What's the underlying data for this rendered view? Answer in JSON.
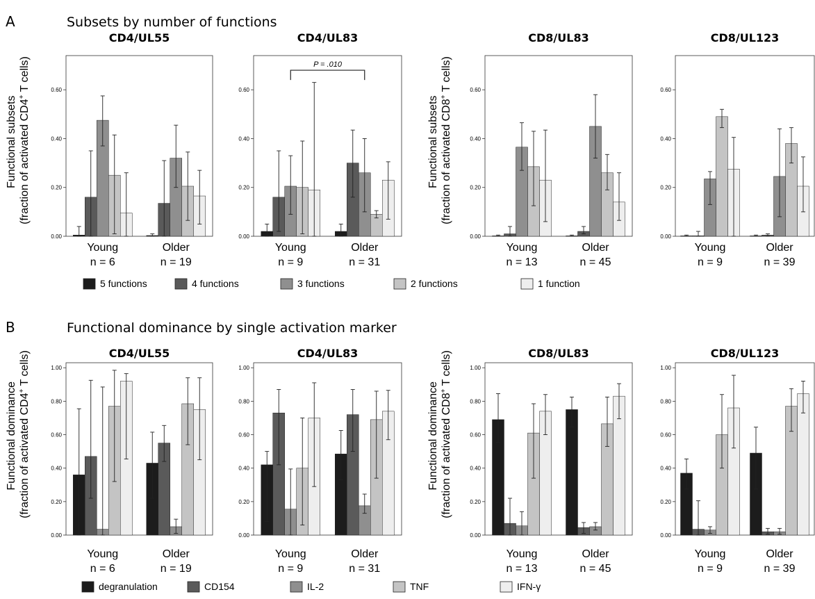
{
  "figure": {
    "panels": [
      {
        "letter": "A",
        "section_title": "Subsets by number of functions",
        "legend": [
          "5 functions",
          "4 functions",
          "3 functions",
          "2 functions",
          "1 function"
        ],
        "ylabels": {
          "cd4": [
            "Functional subsets",
            "(fraction of activated CD4",
            "+",
            " T cells)"
          ],
          "cd8": [
            "Functional subsets",
            "(fraction of activated CD8",
            "+",
            " T cells)"
          ]
        }
      },
      {
        "letter": "B",
        "section_title": "Functional dominance by single activation marker",
        "legend": [
          "degranulation",
          "CD154",
          "IL-2",
          "TNF",
          "IFN-γ"
        ],
        "ylabels": {
          "cd4": [
            "Functional dominance",
            "(fraction of activated CD4",
            "+",
            " T cells)"
          ],
          "cd8": [
            "Functional dominance",
            "(fraction of activated CD8",
            "+",
            " T cells)"
          ]
        }
      }
    ],
    "colors": [
      "#1c1c1c",
      "#5a5a5a",
      "#8f8f8f",
      "#c4c4c4",
      "#eeeeee"
    ]
  },
  "chart_data": [
    {
      "type": "bar",
      "panel": "A",
      "title": "CD4/UL55",
      "ylim": [
        0,
        0.74
      ],
      "yticks": [
        0,
        0.2,
        0.4,
        0.6
      ],
      "yticklabels": [
        "0.00",
        "0.20",
        "0.40",
        "0.60"
      ],
      "groups": [
        {
          "label": "Young",
          "n": "n = 6"
        },
        {
          "label": "Older",
          "n": "n = 19"
        }
      ],
      "series": [
        {
          "name": "5 functions",
          "values": [
            0.005,
            0.003
          ],
          "err_low": [
            0.0,
            0.0
          ],
          "err_high": [
            0.04,
            0.01
          ]
        },
        {
          "name": "4 functions",
          "values": [
            0.16,
            0.135
          ],
          "err_low": [
            0.0,
            0.0
          ],
          "err_high": [
            0.35,
            0.31
          ]
        },
        {
          "name": "3 functions",
          "values": [
            0.475,
            0.32
          ],
          "err_low": [
            0.37,
            0.2
          ],
          "err_high": [
            0.575,
            0.455
          ]
        },
        {
          "name": "2 functions",
          "values": [
            0.25,
            0.205
          ],
          "err_low": [
            0.01,
            0.065
          ],
          "err_high": [
            0.415,
            0.345
          ]
        },
        {
          "name": "1 function",
          "values": [
            0.095,
            0.165
          ],
          "err_low": [
            0.0,
            0.05
          ],
          "err_high": [
            0.26,
            0.27
          ]
        }
      ]
    },
    {
      "type": "bar",
      "panel": "A",
      "title": "CD4/UL83",
      "ylim": [
        0,
        0.74
      ],
      "yticks": [
        0,
        0.2,
        0.4,
        0.6
      ],
      "yticklabels": [
        "0.00",
        "0.20",
        "0.40",
        "0.60"
      ],
      "annotation": {
        "text": "P = .010",
        "from_group": 0,
        "to_group": 1,
        "y": 0.68
      },
      "groups": [
        {
          "label": "Young",
          "n": "n = 9"
        },
        {
          "label": "Older",
          "n": "n = 31"
        }
      ],
      "series": [
        {
          "name": "5 functions",
          "values": [
            0.02,
            0.02
          ],
          "err_low": [
            0.0,
            0.0
          ],
          "err_high": [
            0.05,
            0.05
          ]
        },
        {
          "name": "4 functions",
          "values": [
            0.16,
            0.3
          ],
          "err_low": [
            0.02,
            0.16
          ],
          "err_high": [
            0.35,
            0.435
          ]
        },
        {
          "name": "3 functions",
          "values": [
            0.205,
            0.26
          ],
          "err_low": [
            0.09,
            0.1
          ],
          "err_high": [
            0.33,
            0.4
          ]
        },
        {
          "name": "2 functions",
          "values": [
            0.2,
            0.09
          ],
          "err_low": [
            0.01,
            0.075
          ],
          "err_high": [
            0.39,
            0.105
          ]
        },
        {
          "name": "1 function",
          "values": [
            0.19,
            0.23
          ],
          "err_low": [
            0.0,
            0.07
          ],
          "err_high": [
            0.63,
            0.305
          ]
        }
      ]
    },
    {
      "type": "bar",
      "panel": "A",
      "title": "CD8/UL83",
      "ylim": [
        0,
        0.74
      ],
      "yticks": [
        0,
        0.2,
        0.4,
        0.6
      ],
      "yticklabels": [
        "0.00",
        "0.20",
        "0.40",
        "0.60"
      ],
      "groups": [
        {
          "label": "Young",
          "n": "n = 13"
        },
        {
          "label": "Older",
          "n": "n = 45"
        }
      ],
      "series": [
        {
          "name": "5 functions",
          "values": [
            0.0,
            0.0
          ],
          "err_low": [
            0.0,
            0.0
          ],
          "err_high": [
            0.005,
            0.005
          ]
        },
        {
          "name": "4 functions",
          "values": [
            0.01,
            0.02
          ],
          "err_low": [
            0.0,
            0.01
          ],
          "err_high": [
            0.04,
            0.04
          ]
        },
        {
          "name": "3 functions",
          "values": [
            0.365,
            0.45
          ],
          "err_low": [
            0.27,
            0.32
          ],
          "err_high": [
            0.465,
            0.58
          ]
        },
        {
          "name": "2 functions",
          "values": [
            0.285,
            0.26
          ],
          "err_low": [
            0.125,
            0.19
          ],
          "err_high": [
            0.43,
            0.335
          ]
        },
        {
          "name": "1 function",
          "values": [
            0.23,
            0.14
          ],
          "err_low": [
            0.06,
            0.065
          ],
          "err_high": [
            0.435,
            0.26
          ]
        }
      ]
    },
    {
      "type": "bar",
      "panel": "A",
      "title": "CD8/UL123",
      "ylim": [
        0,
        0.74
      ],
      "yticks": [
        0,
        0.2,
        0.4,
        0.6
      ],
      "yticklabels": [
        "0.00",
        "0.20",
        "0.40",
        "0.60"
      ],
      "groups": [
        {
          "label": "Young",
          "n": "n = 9"
        },
        {
          "label": "Older",
          "n": "n = 39"
        }
      ],
      "series": [
        {
          "name": "5 functions",
          "values": [
            0.0,
            0.0
          ],
          "err_low": [
            0.0,
            0.0
          ],
          "err_high": [
            0.005,
            0.005
          ]
        },
        {
          "name": "4 functions",
          "values": [
            0.002,
            0.005
          ],
          "err_low": [
            0.0,
            0.0
          ],
          "err_high": [
            0.02,
            0.01
          ]
        },
        {
          "name": "3 functions",
          "values": [
            0.235,
            0.245
          ],
          "err_low": [
            0.13,
            0.08
          ],
          "err_high": [
            0.265,
            0.44
          ]
        },
        {
          "name": "2 functions",
          "values": [
            0.49,
            0.38
          ],
          "err_low": [
            0.445,
            0.3
          ],
          "err_high": [
            0.52,
            0.445
          ]
        },
        {
          "name": "1 function",
          "values": [
            0.275,
            0.205
          ],
          "err_low": [
            0.0,
            0.1
          ],
          "err_high": [
            0.405,
            0.325
          ]
        }
      ]
    },
    {
      "type": "bar",
      "panel": "B",
      "title": "CD4/UL55",
      "ylim": [
        0,
        1.03
      ],
      "yticks": [
        0,
        0.2,
        0.4,
        0.6,
        0.8,
        1.0
      ],
      "yticklabels": [
        "0.00",
        "0.20",
        "0.40",
        "0.60",
        "0.80",
        "1.00"
      ],
      "groups": [
        {
          "label": "Young",
          "n": "n = 6"
        },
        {
          "label": "Older",
          "n": "n = 19"
        }
      ],
      "series": [
        {
          "name": "degranulation",
          "values": [
            0.36,
            0.43
          ],
          "err_low": [
            0.0,
            0.22
          ],
          "err_high": [
            0.755,
            0.615
          ]
        },
        {
          "name": "CD154",
          "values": [
            0.47,
            0.55
          ],
          "err_low": [
            0.22,
            0.44
          ],
          "err_high": [
            0.925,
            0.655
          ]
        },
        {
          "name": "IL-2",
          "values": [
            0.035,
            0.05
          ],
          "err_low": [
            0.0,
            0.01
          ],
          "err_high": [
            0.885,
            0.095
          ]
        },
        {
          "name": "TNF",
          "values": [
            0.77,
            0.785
          ],
          "err_low": [
            0.32,
            0.54
          ],
          "err_high": [
            0.985,
            0.94
          ]
        },
        {
          "name": "IFN-γ",
          "values": [
            0.92,
            0.75
          ],
          "err_low": [
            0.455,
            0.45
          ],
          "err_high": [
            0.965,
            0.94
          ]
        }
      ]
    },
    {
      "type": "bar",
      "panel": "B",
      "title": "CD4/UL83",
      "ylim": [
        0,
        1.03
      ],
      "yticks": [
        0,
        0.2,
        0.4,
        0.6,
        0.8,
        1.0
      ],
      "yticklabels": [
        "0.00",
        "0.20",
        "0.40",
        "0.60",
        "0.80",
        "1.00"
      ],
      "groups": [
        {
          "label": "Young",
          "n": "n = 9"
        },
        {
          "label": "Older",
          "n": "n = 31"
        }
      ],
      "series": [
        {
          "name": "degranulation",
          "values": [
            0.42,
            0.485
          ],
          "err_low": [
            0.08,
            0.33
          ],
          "err_high": [
            0.5,
            0.625
          ]
        },
        {
          "name": "CD154",
          "values": [
            0.73,
            0.72
          ],
          "err_low": [
            0.42,
            0.5
          ],
          "err_high": [
            0.87,
            0.87
          ]
        },
        {
          "name": "IL-2",
          "values": [
            0.155,
            0.175
          ],
          "err_low": [
            0.0,
            0.13
          ],
          "err_high": [
            0.395,
            0.245
          ]
        },
        {
          "name": "TNF",
          "values": [
            0.4,
            0.69
          ],
          "err_low": [
            0.06,
            0.34
          ],
          "err_high": [
            0.7,
            0.86
          ]
        },
        {
          "name": "IFN-γ",
          "values": [
            0.7,
            0.74
          ],
          "err_low": [
            0.29,
            0.57
          ],
          "err_high": [
            0.91,
            0.865
          ]
        }
      ]
    },
    {
      "type": "bar",
      "panel": "B",
      "title": "CD8/UL83",
      "ylim": [
        0,
        1.03
      ],
      "yticks": [
        0,
        0.2,
        0.4,
        0.6,
        0.8,
        1.0
      ],
      "yticklabels": [
        "0.00",
        "0.20",
        "0.40",
        "0.60",
        "0.80",
        "1.00"
      ],
      "groups": [
        {
          "label": "Young",
          "n": "n = 13"
        },
        {
          "label": "Older",
          "n": "n = 45"
        }
      ],
      "series": [
        {
          "name": "degranulation",
          "values": [
            0.69,
            0.75
          ],
          "err_low": [
            0.555,
            0.645
          ],
          "err_high": [
            0.845,
            0.825
          ]
        },
        {
          "name": "CD154",
          "values": [
            0.07,
            0.045
          ],
          "err_low": [
            0.0,
            0.01
          ],
          "err_high": [
            0.22,
            0.075
          ]
        },
        {
          "name": "IL-2",
          "values": [
            0.055,
            0.05
          ],
          "err_low": [
            0.0,
            0.03
          ],
          "err_high": [
            0.14,
            0.075
          ]
        },
        {
          "name": "TNF",
          "values": [
            0.61,
            0.665
          ],
          "err_low": [
            0.34,
            0.53
          ],
          "err_high": [
            0.785,
            0.825
          ]
        },
        {
          "name": "IFN-γ",
          "values": [
            0.74,
            0.83
          ],
          "err_low": [
            0.6,
            0.695
          ],
          "err_high": [
            0.84,
            0.905
          ]
        }
      ]
    },
    {
      "type": "bar",
      "panel": "B",
      "title": "CD8/UL123",
      "ylim": [
        0,
        1.03
      ],
      "yticks": [
        0,
        0.2,
        0.4,
        0.6,
        0.8,
        1.0
      ],
      "yticklabels": [
        "0.00",
        "0.20",
        "0.40",
        "0.60",
        "0.80",
        "1.00"
      ],
      "groups": [
        {
          "label": "Young",
          "n": "n = 9"
        },
        {
          "label": "Older",
          "n": "n = 39"
        }
      ],
      "series": [
        {
          "name": "degranulation",
          "values": [
            0.37,
            0.49
          ],
          "err_low": [
            0.275,
            0.275
          ],
          "err_high": [
            0.455,
            0.645
          ]
        },
        {
          "name": "CD154",
          "values": [
            0.035,
            0.02
          ],
          "err_low": [
            0.0,
            0.005
          ],
          "err_high": [
            0.205,
            0.04
          ]
        },
        {
          "name": "IL-2",
          "values": [
            0.03,
            0.02
          ],
          "err_low": [
            0.01,
            0.005
          ],
          "err_high": [
            0.05,
            0.04
          ]
        },
        {
          "name": "TNF",
          "values": [
            0.6,
            0.77
          ],
          "err_low": [
            0.4,
            0.62
          ],
          "err_high": [
            0.84,
            0.875
          ]
        },
        {
          "name": "IFN-γ",
          "values": [
            0.76,
            0.845
          ],
          "err_low": [
            0.52,
            0.73
          ],
          "err_high": [
            0.955,
            0.92
          ]
        }
      ]
    }
  ]
}
